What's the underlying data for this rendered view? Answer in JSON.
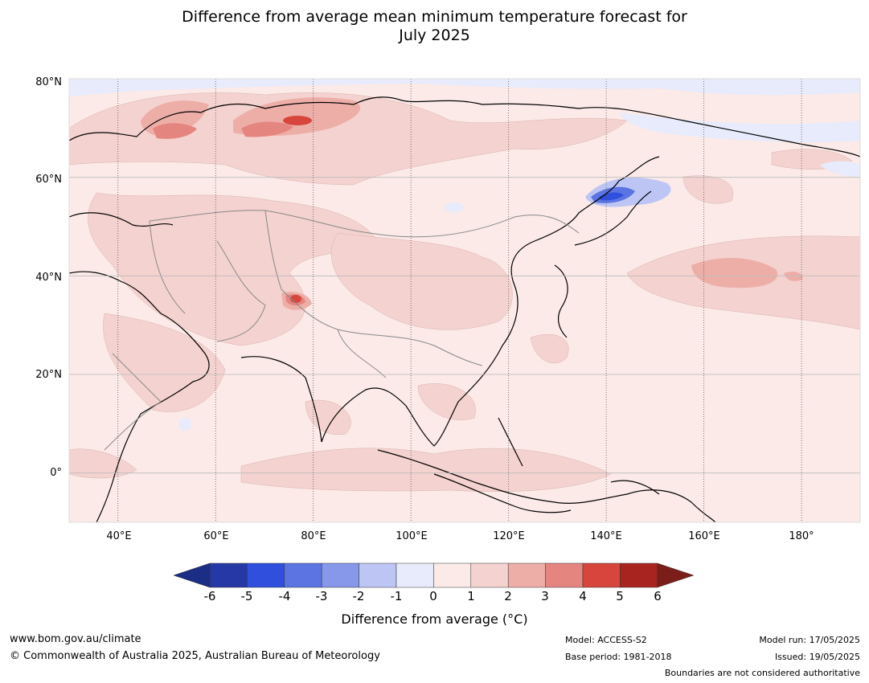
{
  "title": {
    "line1": "Difference from average mean minimum temperature forecast for",
    "line2": "July 2025"
  },
  "map": {
    "lon_range": [
      30,
      192
    ],
    "lat_range": [
      -10,
      80
    ],
    "lat_labels": [
      "80°N",
      "60°N",
      "40°N",
      "20°N",
      "0°"
    ],
    "lon_labels": [
      "40°E",
      "60°E",
      "80°E",
      "100°E",
      "120°E",
      "140°E",
      "160°E",
      "180°"
    ],
    "grid_lons": [
      40,
      60,
      80,
      100,
      120,
      140,
      160,
      180
    ],
    "grid_lats": [
      0,
      20,
      40,
      60,
      80
    ]
  },
  "colorbar": {
    "ticks": [
      "-6",
      "-5",
      "-4",
      "-3",
      "-2",
      "-1",
      "0",
      "1",
      "2",
      "3",
      "4",
      "5",
      "6"
    ],
    "colors": [
      "#2638a5",
      "#2f4fdc",
      "#5b74e2",
      "#8797ea",
      "#bcc5f4",
      "#e8ebfb",
      "#fbeae8",
      "#f4d2cf",
      "#eeaea8",
      "#e58580",
      "#d6463c",
      "#a8251f"
    ],
    "under_color": "#1b2d85",
    "over_color": "#7b1d18",
    "label": "Difference from average (°C)"
  },
  "footer": {
    "website": "www.bom.gov.au/climate",
    "copyright": "© Commonwealth of Australia 2025, Australian Bureau of Meteorology",
    "model": "Model: ACCESS-S2",
    "base_period": "Base period: 1981-2018",
    "model_run": "Model run: 17/05/2025",
    "issued": "Issued: 19/05/2025",
    "disclaimer": "Boundaries are not considered authoritative"
  }
}
